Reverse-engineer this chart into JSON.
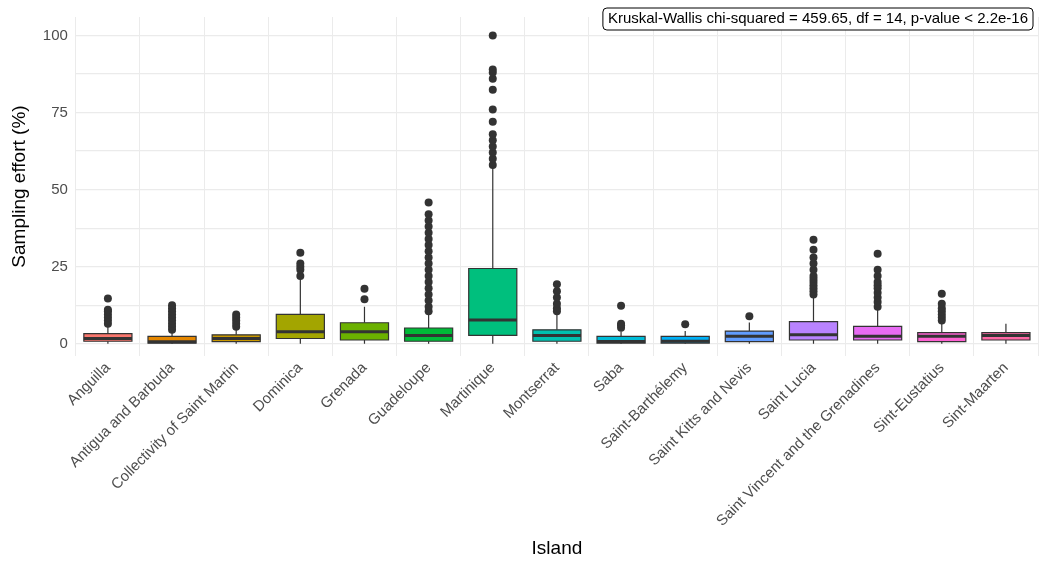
{
  "chart_data": {
    "type": "box",
    "xlabel": "Island",
    "ylabel": "Sampling effort (%)",
    "annotations": [
      "Kruskal-Wallis chi-squared = 459.65, df = 14, p-value < 2.2e-16"
    ],
    "categories": [
      "Anguilla",
      "Antigua and Barbuda",
      "Collectivity of Saint Martin",
      "Dominica",
      "Grenada",
      "Guadeloupe",
      "Martinique",
      "Montserrat",
      "Saba",
      "Saint-Barthélemy",
      "Saint Kitts and Nevis",
      "Saint Lucia",
      "Saint Vincent and the Grenadines",
      "Sint-Eustatius",
      "Sint-Maarten"
    ],
    "colors": [
      "#f8766d",
      "#e58700",
      "#c99800",
      "#a3a500",
      "#6bb100",
      "#00ba38",
      "#00bf7d",
      "#00c0af",
      "#00bcd8",
      "#00b0f6",
      "#619cff",
      "#b983ff",
      "#e76bf3",
      "#fd61d1",
      "#ff67a4"
    ],
    "boxes": [
      {
        "low": 0,
        "q1": 0.8,
        "median": 1.7,
        "q3": 3.3,
        "high": 5.5,
        "outliers": [
          6.5,
          7.5,
          8.5,
          9.5,
          10.5,
          11,
          14.7
        ]
      },
      {
        "low": 0,
        "q1": 0.2,
        "median": 0.6,
        "q3": 2.4,
        "high": 3.6,
        "outliers": [
          4.5,
          5.5,
          6.5,
          7.5,
          8.5,
          9.5,
          10.5,
          11.5,
          12.5
        ]
      },
      {
        "low": 0,
        "q1": 0.7,
        "median": 1.7,
        "q3": 2.9,
        "high": 4.5,
        "outliers": [
          5.5,
          6.5,
          7.5,
          8.5,
          9.5
        ]
      },
      {
        "low": 0,
        "q1": 1.7,
        "median": 3.9,
        "q3": 9.5,
        "high": 21,
        "outliers": [
          22,
          24,
          25,
          26,
          29.5
        ]
      },
      {
        "low": 0,
        "q1": 1.2,
        "median": 3.9,
        "q3": 6.8,
        "high": 12,
        "outliers": [
          14.4,
          17.8
        ]
      },
      {
        "low": 0,
        "q1": 0.8,
        "median": 2.7,
        "q3": 5.1,
        "high": 9.9,
        "outliers": [
          10.5,
          12,
          14,
          16,
          18,
          20,
          22,
          24,
          26,
          28,
          30,
          32,
          34,
          36,
          38,
          40,
          42,
          45.8
        ]
      },
      {
        "low": 0,
        "q1": 2.7,
        "median": 7.7,
        "q3": 24.4,
        "high": 57,
        "outliers": [
          58,
          60,
          62,
          64,
          66,
          68,
          72,
          76,
          82.4,
          86,
          88,
          89,
          100
        ]
      },
      {
        "low": 0,
        "q1": 0.8,
        "median": 2.7,
        "q3": 4.5,
        "high": 9.9,
        "outliers": [
          10.5,
          11.5,
          13,
          15,
          17,
          19.3
        ]
      },
      {
        "low": 0,
        "q1": 0.2,
        "median": 0.7,
        "q3": 2.4,
        "high": 4,
        "outliers": [
          5.2,
          6,
          6.5,
          12.3
        ]
      },
      {
        "low": 0,
        "q1": 0.2,
        "median": 0.8,
        "q3": 2.4,
        "high": 4.1,
        "outliers": [
          6.3
        ]
      },
      {
        "low": 0,
        "q1": 0.7,
        "median": 2.4,
        "q3": 4.1,
        "high": 6.9,
        "outliers": [
          8.9
        ]
      },
      {
        "low": 0,
        "q1": 1.2,
        "median": 2.9,
        "q3": 7.2,
        "high": 15.3,
        "outliers": [
          16,
          17,
          18,
          19,
          20,
          21,
          22,
          24,
          26,
          28,
          30.5,
          33.7
        ]
      },
      {
        "low": 0,
        "q1": 1.2,
        "median": 2.4,
        "q3": 5.6,
        "high": 11.1,
        "outliers": [
          12,
          13.5,
          15,
          16.5,
          18,
          19,
          20,
          22,
          24,
          29.2
        ]
      },
      {
        "low": 0,
        "q1": 0.7,
        "median": 2.4,
        "q3": 3.6,
        "high": 6.9,
        "outliers": [
          7.5,
          8.5,
          9.5,
          10.5,
          11.5,
          13,
          16.2
        ]
      },
      {
        "low": 0,
        "q1": 1.2,
        "median": 2.7,
        "q3": 3.6,
        "high": 6.5
      }
    ],
    "ylim": [
      -4,
      106
    ],
    "yticks": [
      0,
      {
        "value": 12.5,
        "label": null
      },
      25,
      {
        "value": 37.5,
        "label": null
      },
      50,
      {
        "value": 62.5,
        "label": null
      },
      75,
      {
        "value": 87.5,
        "label": null
      },
      100
    ],
    "grid": true,
    "legend": false
  }
}
